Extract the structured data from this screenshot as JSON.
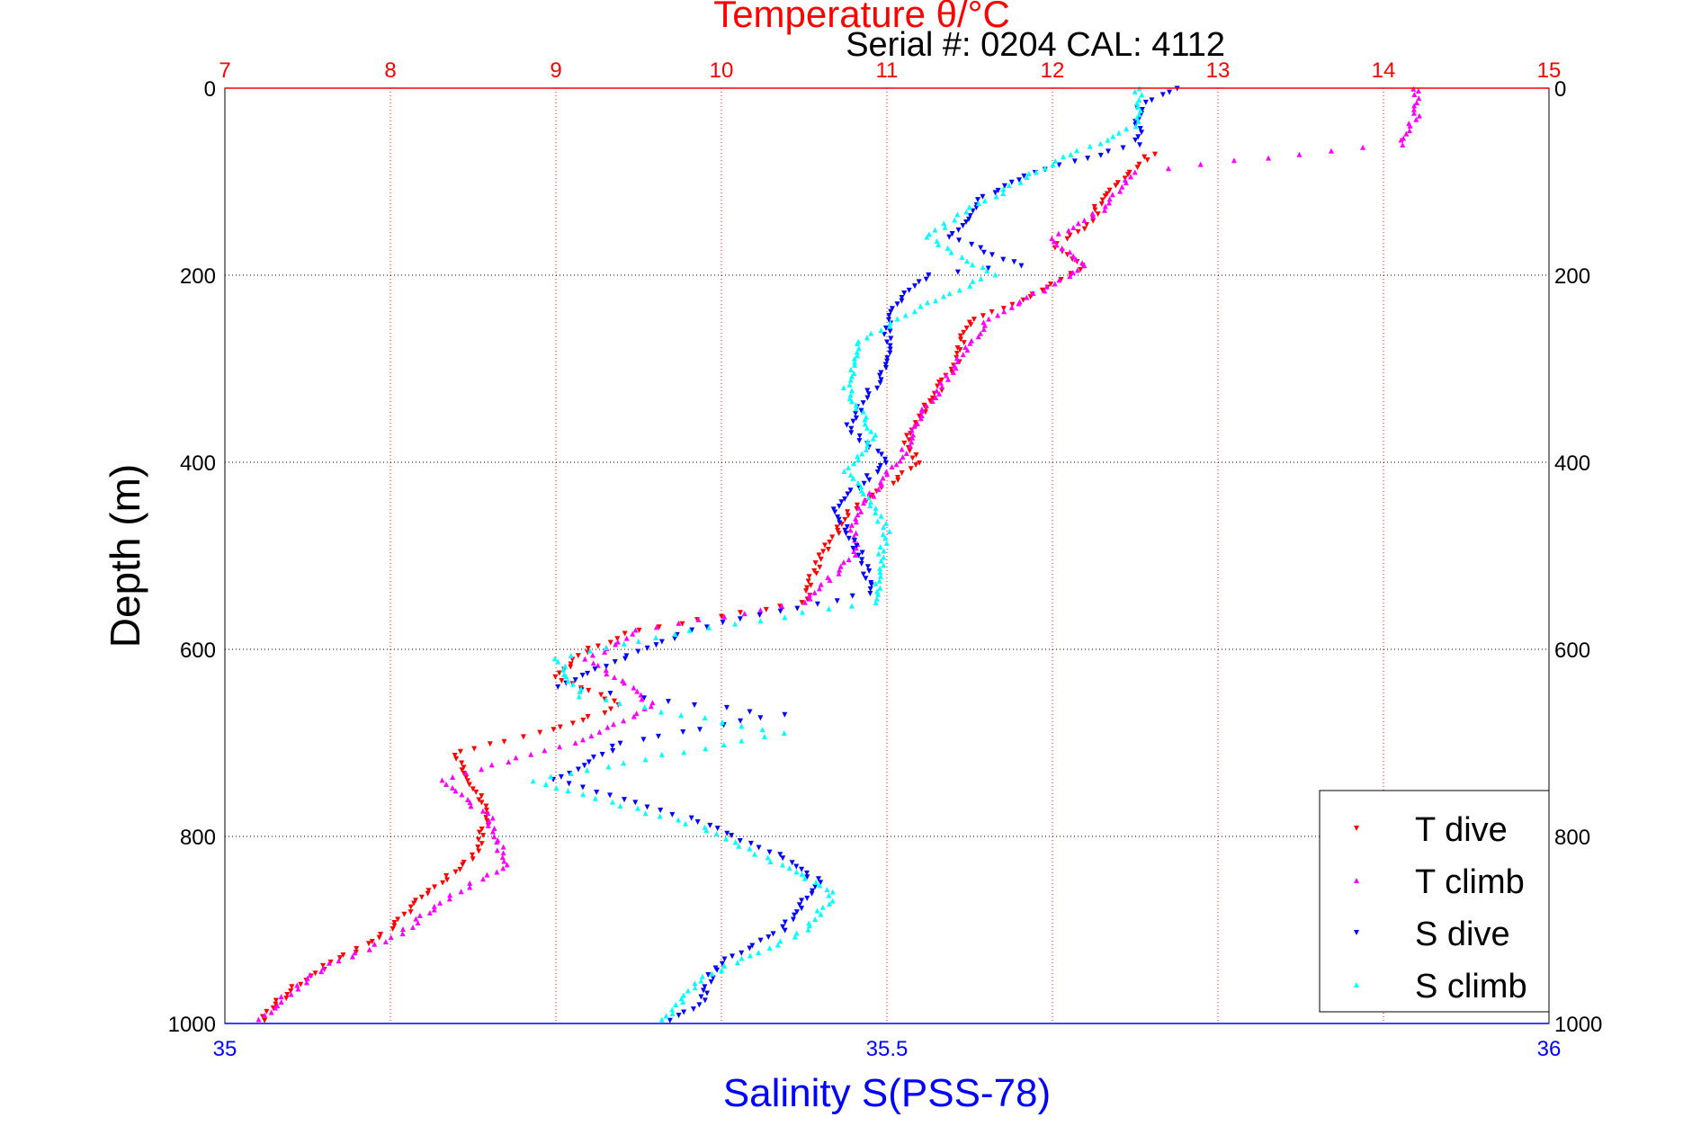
{
  "chart_data": {
    "type": "scatter",
    "title": "Temperature θ/°C",
    "subtitle": "Serial #: 0204  CAL: 4112",
    "xlabel_bottom": "Salinity S(PSS-78)",
    "ylabel": "Depth (m)",
    "x_top": {
      "min": 7,
      "max": 15,
      "ticks": [
        "7",
        "8",
        "9",
        "10",
        "11",
        "12",
        "13",
        "14",
        "15"
      ]
    },
    "x_bottom": {
      "min": 35,
      "max": 36,
      "ticks": [
        "35",
        "35.5",
        "36"
      ]
    },
    "y": {
      "min": 0,
      "max": 1000,
      "reversed": true,
      "ticks": [
        "0",
        "200",
        "400",
        "600",
        "800",
        "1000"
      ]
    },
    "grid": true,
    "legend_position": "bottom-right",
    "colors": {
      "title": "#ff0000",
      "salinity_axis": "#0000ff",
      "grid_x": "#ff0000",
      "grid_y": "#000000"
    },
    "series": [
      {
        "name": "T dive",
        "axis": "top",
        "color": "#ff0000",
        "marker": "triangle-down",
        "points": [
          [
            12.6,
            70
          ],
          [
            12.3,
            120
          ],
          [
            12.2,
            150
          ],
          [
            12.0,
            170
          ],
          [
            12.2,
            190
          ],
          [
            11.9,
            220
          ],
          [
            11.5,
            250
          ],
          [
            11.4,
            300
          ],
          [
            11.2,
            350
          ],
          [
            11.1,
            380
          ],
          [
            11.2,
            400
          ],
          [
            10.8,
            450
          ],
          [
            10.6,
            500
          ],
          [
            10.5,
            550
          ],
          [
            9.5,
            580
          ],
          [
            9.2,
            600
          ],
          [
            9.0,
            630
          ],
          [
            9.4,
            660
          ],
          [
            8.9,
            690
          ],
          [
            8.4,
            710
          ],
          [
            8.6,
            780
          ],
          [
            8.5,
            820
          ],
          [
            8.3,
            850
          ],
          [
            8.1,
            880
          ],
          [
            8.0,
            900
          ],
          [
            7.5,
            950
          ],
          [
            7.3,
            980
          ],
          [
            7.2,
            1000
          ]
        ]
      },
      {
        "name": "T climb",
        "axis": "top",
        "color": "#ff00ff",
        "marker": "triangle-up",
        "points": [
          [
            14.2,
            0
          ],
          [
            14.2,
            30
          ],
          [
            14.1,
            60
          ],
          [
            13.5,
            70
          ],
          [
            12.5,
            90
          ],
          [
            12.3,
            130
          ],
          [
            12.0,
            160
          ],
          [
            12.2,
            190
          ],
          [
            11.9,
            220
          ],
          [
            11.6,
            250
          ],
          [
            11.4,
            300
          ],
          [
            11.2,
            350
          ],
          [
            11.1,
            390
          ],
          [
            10.8,
            460
          ],
          [
            10.8,
            500
          ],
          [
            10.5,
            550
          ],
          [
            9.5,
            580
          ],
          [
            9.2,
            610
          ],
          [
            9.6,
            660
          ],
          [
            9.1,
            700
          ],
          [
            8.3,
            740
          ],
          [
            8.6,
            780
          ],
          [
            8.7,
            830
          ],
          [
            8.3,
            870
          ],
          [
            8.1,
            900
          ],
          [
            7.6,
            940
          ],
          [
            7.3,
            980
          ],
          [
            7.2,
            1000
          ]
        ]
      },
      {
        "name": "S dive",
        "axis": "bottom",
        "color": "#0000ff",
        "marker": "triangle-down",
        "points": [
          [
            35.72,
            0
          ],
          [
            35.69,
            20
          ],
          [
            35.69,
            60
          ],
          [
            35.61,
            90
          ],
          [
            35.57,
            120
          ],
          [
            35.55,
            160
          ],
          [
            35.6,
            190
          ],
          [
            35.53,
            200
          ],
          [
            35.5,
            240
          ],
          [
            35.5,
            300
          ],
          [
            35.47,
            360
          ],
          [
            35.5,
            400
          ],
          [
            35.46,
            450
          ],
          [
            35.48,
            500
          ],
          [
            35.49,
            540
          ],
          [
            35.35,
            580
          ],
          [
            35.3,
            610
          ],
          [
            35.25,
            640
          ],
          [
            35.42,
            670
          ],
          [
            35.3,
            700
          ],
          [
            35.25,
            740
          ],
          [
            35.35,
            780
          ],
          [
            35.42,
            820
          ],
          [
            35.45,
            850
          ],
          [
            35.42,
            900
          ],
          [
            35.37,
            940
          ],
          [
            35.36,
            980
          ],
          [
            35.33,
            1000
          ]
        ]
      },
      {
        "name": "S climb",
        "axis": "bottom",
        "color": "#00ffff",
        "marker": "triangle-up",
        "points": [
          [
            35.69,
            0
          ],
          [
            35.69,
            40
          ],
          [
            35.64,
            70
          ],
          [
            35.6,
            100
          ],
          [
            35.55,
            140
          ],
          [
            35.53,
            160
          ],
          [
            35.58,
            200
          ],
          [
            35.53,
            230
          ],
          [
            35.48,
            270
          ],
          [
            35.47,
            320
          ],
          [
            35.49,
            370
          ],
          [
            35.47,
            410
          ],
          [
            35.5,
            470
          ],
          [
            35.49,
            550
          ],
          [
            35.35,
            580
          ],
          [
            35.25,
            610
          ],
          [
            35.27,
            650
          ],
          [
            35.42,
            690
          ],
          [
            35.23,
            740
          ],
          [
            35.36,
            790
          ],
          [
            35.42,
            830
          ],
          [
            35.46,
            860
          ],
          [
            35.44,
            900
          ],
          [
            35.36,
            950
          ],
          [
            35.33,
            1000
          ]
        ]
      }
    ],
    "legend": [
      "T dive",
      "T climb",
      "S dive",
      "S climb"
    ]
  }
}
